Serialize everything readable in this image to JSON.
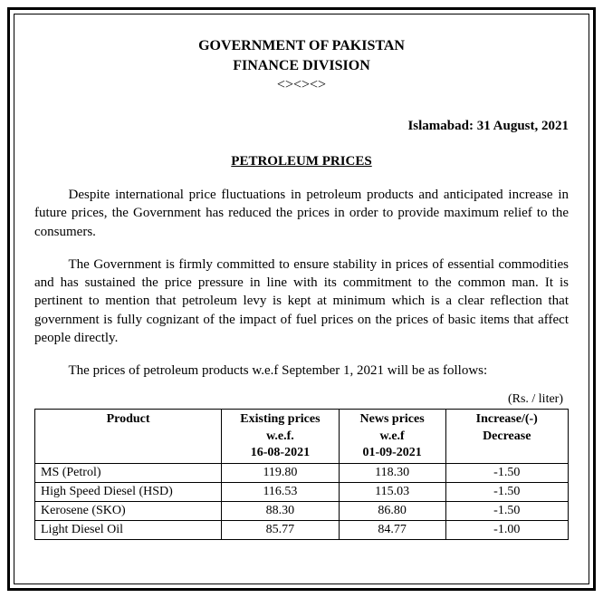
{
  "header": {
    "line1": "GOVERNMENT OF PAKISTAN",
    "line2": "FINANCE DIVISION",
    "ornament": "<><><>"
  },
  "dateplace": "Islamabad: 31 August, 2021",
  "subtitle": "PETROLEUM PRICES",
  "para1": "Despite international price fluctuations in petroleum products and anticipated increase in future prices, the Government has reduced the prices in order to provide maximum relief to the consumers.",
  "para2": "The Government is firmly committed to ensure stability in prices of essential commodities and has sustained the price pressure in line with its commitment to the common man. It is pertinent to mention that petroleum levy is kept at minimum which is a clear reflection that government is fully cognizant of the impact of fuel prices on the prices of basic items that affect people directly.",
  "para3": "The prices of petroleum products w.e.f September 1, 2021 will be as follows:",
  "table": {
    "unit_label": "(Rs. / liter)",
    "columns": {
      "product": "Product",
      "existing_l1": "Existing prices",
      "existing_l2": "w.e.f.",
      "existing_l3": "16-08-2021",
      "new_l1": "News prices",
      "new_l2": "w.e.f",
      "new_l3": "01-09-2021",
      "change_l1": "Increase/(-)",
      "change_l2": "Decrease"
    },
    "rows": [
      {
        "product": "MS (Petrol)",
        "existing": "119.80",
        "newp": "118.30",
        "change": "-1.50"
      },
      {
        "product": "High Speed Diesel (HSD)",
        "existing": "116.53",
        "newp": "115.03",
        "change": "-1.50"
      },
      {
        "product": "Kerosene (SKO)",
        "existing": "88.30",
        "newp": "86.80",
        "change": "-1.50"
      },
      {
        "product": "Light Diesel Oil",
        "existing": "85.77",
        "newp": "84.77",
        "change": "-1.00"
      }
    ]
  }
}
